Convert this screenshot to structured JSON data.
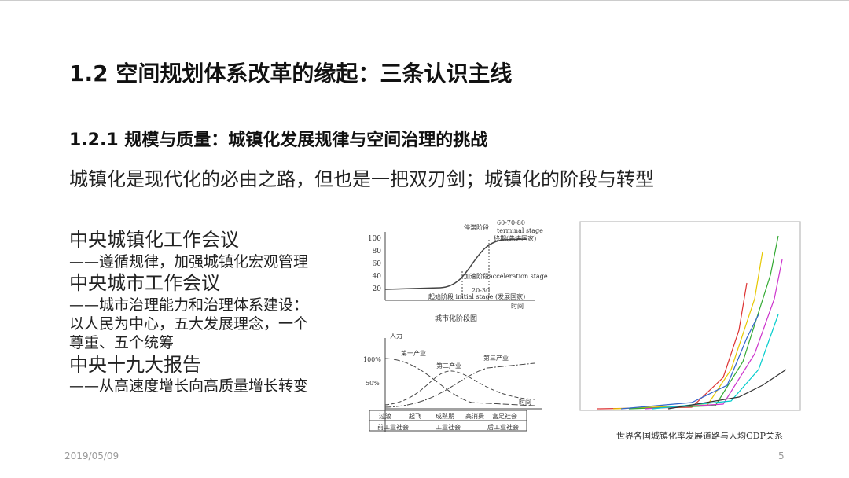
{
  "title": "1.2 空间规划体系改革的缘起：三条认识主线",
  "subtitle": "1.2.1 规模与质量：城镇化发展规律与空间治理的挑战",
  "lead": "城镇化是现代化的必由之路，但也是一把双刃剑；城镇化的阶段与转型",
  "items": [
    {
      "heading": "中央城镇化工作会议",
      "lines": [
        "——遵循规律，加强城镇化宏观管理"
      ]
    },
    {
      "heading": "中央城市工作会议",
      "lines": [
        "——城市治理能力和治理体系建设：",
        "以人民为中心，五大发展理念，一个",
        "尊重、五个统筹"
      ]
    },
    {
      "heading": "中央十九大报告",
      "lines": [
        "——从高速度增长向高质量增长转变"
      ]
    }
  ],
  "figure_stages": {
    "ticks": [
      "100",
      "80",
      "60",
      "40",
      "20"
    ],
    "labels": [
      "停滞阶段",
      "60-70-80",
      "terminal stage",
      "终期(先进国家)",
      "加速阶段acceleration stage",
      "20-30",
      "起始阶段 initial stage (发展国家)",
      "时间"
    ],
    "caption": "城市化阶段图"
  },
  "figure_industry": {
    "labels": [
      "人力",
      "100%",
      "50%",
      "第一产业",
      "第二产业",
      "第三产业",
      "时间"
    ],
    "stages": [
      "过渡",
      "起飞",
      "成熟期",
      "高消费",
      "富足社会"
    ],
    "eras": [
      "前工业社会",
      "工业社会",
      "后工业社会"
    ]
  },
  "figure_world": {
    "caption": "世界各国城镇化率发展道路与人均GDP关系"
  },
  "footer": {
    "date": "2019/05/09",
    "page": "5"
  }
}
